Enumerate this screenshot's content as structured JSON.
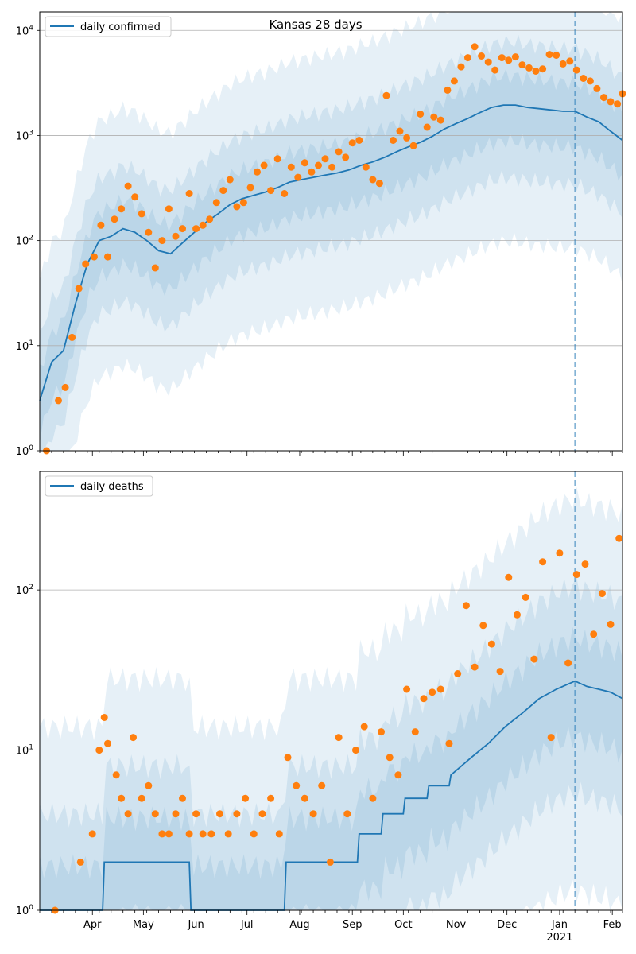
{
  "chart_data": [
    {
      "type": "line",
      "title": "Kansas 28 days",
      "legend": [
        "daily confirmed"
      ],
      "legend_position": "top-left",
      "y_scale": "log",
      "ylim": [
        1,
        15000
      ],
      "xlim": [
        "2020-03-01",
        "2021-02-07"
      ],
      "y_ticks": [
        {
          "value": 1,
          "label": "10^0"
        },
        {
          "value": 10,
          "label": "10^1"
        },
        {
          "value": 100,
          "label": "10^2"
        },
        {
          "value": 1000,
          "label": "10^3"
        },
        {
          "value": 10000,
          "label": "10^4"
        }
      ],
      "grid": "horizontal",
      "forecast_start": "2021-01-10",
      "series": [
        {
          "name": "daily confirmed",
          "kind": "line",
          "color": "#1f77b4",
          "x": [
            "2020-03-01",
            "2020-03-08",
            "2020-03-15",
            "2020-03-22",
            "2020-03-29",
            "2020-04-05",
            "2020-04-12",
            "2020-04-19",
            "2020-04-26",
            "2020-05-03",
            "2020-05-10",
            "2020-05-17",
            "2020-05-24",
            "2020-05-31",
            "2020-06-07",
            "2020-06-14",
            "2020-06-21",
            "2020-06-28",
            "2020-07-05",
            "2020-07-12",
            "2020-07-19",
            "2020-07-26",
            "2020-08-02",
            "2020-08-09",
            "2020-08-16",
            "2020-08-23",
            "2020-08-30",
            "2020-09-06",
            "2020-09-13",
            "2020-09-20",
            "2020-09-27",
            "2020-10-04",
            "2020-10-11",
            "2020-10-18",
            "2020-10-25",
            "2020-11-01",
            "2020-11-08",
            "2020-11-15",
            "2020-11-22",
            "2020-11-29",
            "2020-12-06",
            "2020-12-13",
            "2020-12-20",
            "2020-12-27",
            "2021-01-03",
            "2021-01-10",
            "2021-01-17",
            "2021-01-24",
            "2021-01-31",
            "2021-02-07"
          ],
          "y": [
            3,
            7,
            9,
            25,
            60,
            100,
            110,
            130,
            120,
            100,
            80,
            75,
            95,
            120,
            150,
            180,
            220,
            250,
            270,
            290,
            320,
            360,
            380,
            400,
            420,
            440,
            470,
            520,
            560,
            620,
            700,
            780,
            860,
            980,
            1150,
            1300,
            1450,
            1650,
            1850,
            1950,
            1950,
            1850,
            1800,
            1750,
            1700,
            1700,
            1500,
            1350,
            1100,
            900
          ]
        },
        {
          "name": "",
          "kind": "points",
          "color": "#ff7f0e",
          "x": [
            "2020-03-05",
            "2020-03-12",
            "2020-03-16",
            "2020-03-20",
            "2020-03-24",
            "2020-03-28",
            "2020-04-02",
            "2020-04-06",
            "2020-04-10",
            "2020-04-14",
            "2020-04-18",
            "2020-04-22",
            "2020-04-26",
            "2020-04-30",
            "2020-05-04",
            "2020-05-08",
            "2020-05-12",
            "2020-05-16",
            "2020-05-20",
            "2020-05-24",
            "2020-05-28",
            "2020-06-01",
            "2020-06-05",
            "2020-06-09",
            "2020-06-13",
            "2020-06-17",
            "2020-06-21",
            "2020-06-25",
            "2020-06-29",
            "2020-07-03",
            "2020-07-07",
            "2020-07-11",
            "2020-07-15",
            "2020-07-19",
            "2020-07-23",
            "2020-07-27",
            "2020-07-31",
            "2020-08-04",
            "2020-08-08",
            "2020-08-12",
            "2020-08-16",
            "2020-08-20",
            "2020-08-24",
            "2020-08-28",
            "2020-09-01",
            "2020-09-05",
            "2020-09-09",
            "2020-09-13",
            "2020-09-17",
            "2020-09-21",
            "2020-09-25",
            "2020-09-29",
            "2020-10-03",
            "2020-10-07",
            "2020-10-11",
            "2020-10-15",
            "2020-10-19",
            "2020-10-23",
            "2020-10-27",
            "2020-10-31",
            "2020-11-04",
            "2020-11-08",
            "2020-11-12",
            "2020-11-16",
            "2020-11-20",
            "2020-11-24",
            "2020-11-28",
            "2020-12-02",
            "2020-12-06",
            "2020-12-10",
            "2020-12-14",
            "2020-12-18",
            "2020-12-22",
            "2020-12-26",
            "2020-12-30",
            "2021-01-03",
            "2021-01-07",
            "2021-01-11",
            "2021-01-15",
            "2021-01-19",
            "2021-01-23",
            "2021-01-27",
            "2021-01-31",
            "2021-02-04",
            "2021-02-07"
          ],
          "y": [
            1,
            3,
            4,
            12,
            35,
            60,
            70,
            140,
            70,
            160,
            200,
            330,
            260,
            180,
            120,
            55,
            100,
            200,
            110,
            130,
            280,
            130,
            140,
            160,
            230,
            300,
            380,
            210,
            230,
            320,
            450,
            520,
            300,
            600,
            280,
            500,
            400,
            550,
            450,
            520,
            600,
            500,
            700,
            620,
            850,
            900,
            500,
            380,
            350,
            2400,
            900,
            1100,
            950,
            800,
            1600,
            1200,
            1500,
            1400,
            2700,
            3300,
            4500,
            5500,
            7000,
            5700,
            5000,
            4200,
            5500,
            5200,
            5600,
            4700,
            4400,
            4100,
            4300,
            5900,
            5800,
            4800,
            5100,
            4200,
            3500,
            3300,
            2800,
            2300,
            2100,
            2000,
            2500
          ]
        }
      ]
    },
    {
      "type": "line",
      "title": "",
      "legend": [
        "daily deaths"
      ],
      "legend_position": "top-left",
      "y_scale": "log",
      "ylim": [
        1,
        550
      ],
      "xlim": [
        "2020-03-01",
        "2021-02-07"
      ],
      "x_ticks": [
        "Apr",
        "May",
        "Jun",
        "Jul",
        "Aug",
        "Sep",
        "Oct",
        "Nov",
        "Dec",
        "Jan",
        "Feb"
      ],
      "x_tick_year": "2021",
      "y_ticks": [
        {
          "value": 10,
          "label": "10^1"
        },
        {
          "value": 100,
          "label": "10^2"
        },
        {
          "value": 1,
          "label": "10^0"
        }
      ],
      "grid": "horizontal",
      "forecast_start": "2021-01-10",
      "series": [
        {
          "name": "daily deaths",
          "kind": "line",
          "color": "#1f77b4",
          "x": [
            "2020-03-01",
            "2020-04-07",
            "2020-04-08",
            "2020-05-28",
            "2020-05-29",
            "2020-07-23",
            "2020-07-24",
            "2020-07-28",
            "2020-07-29",
            "2020-08-16",
            "2020-08-17",
            "2020-09-04",
            "2020-09-05",
            "2020-09-18",
            "2020-09-19",
            "2020-10-01",
            "2020-10-02",
            "2020-10-15",
            "2020-10-16",
            "2020-10-28",
            "2020-10-29",
            "2020-11-10",
            "2020-11-20",
            "2020-11-30",
            "2020-12-10",
            "2020-12-20",
            "2020-12-30",
            "2021-01-10",
            "2021-01-17",
            "2021-01-24",
            "2021-01-31",
            "2021-02-07"
          ],
          "y": [
            1,
            1,
            2,
            2,
            1,
            1,
            2,
            2,
            2,
            2,
            2,
            2,
            3,
            3,
            4,
            4,
            5,
            5,
            6,
            6,
            7,
            9,
            11,
            14,
            17,
            21,
            24,
            27,
            25,
            24,
            23,
            21
          ]
        },
        {
          "name": "",
          "kind": "points",
          "color": "#ff7f0e",
          "x": [
            "2020-03-10",
            "2020-03-25",
            "2020-04-01",
            "2020-04-05",
            "2020-04-08",
            "2020-04-10",
            "2020-04-15",
            "2020-04-18",
            "2020-04-22",
            "2020-04-25",
            "2020-04-30",
            "2020-05-04",
            "2020-05-08",
            "2020-05-12",
            "2020-05-16",
            "2020-05-20",
            "2020-05-24",
            "2020-05-28",
            "2020-06-01",
            "2020-06-05",
            "2020-06-10",
            "2020-06-15",
            "2020-06-20",
            "2020-06-25",
            "2020-06-30",
            "2020-07-05",
            "2020-07-10",
            "2020-07-15",
            "2020-07-20",
            "2020-07-25",
            "2020-07-30",
            "2020-08-04",
            "2020-08-09",
            "2020-08-14",
            "2020-08-19",
            "2020-08-24",
            "2020-08-29",
            "2020-09-03",
            "2020-09-08",
            "2020-09-13",
            "2020-09-18",
            "2020-09-23",
            "2020-09-28",
            "2020-10-03",
            "2020-10-08",
            "2020-10-13",
            "2020-10-18",
            "2020-10-23",
            "2020-10-28",
            "2020-11-02",
            "2020-11-07",
            "2020-11-12",
            "2020-11-17",
            "2020-11-22",
            "2020-11-27",
            "2020-12-02",
            "2020-12-07",
            "2020-12-12",
            "2020-12-17",
            "2020-12-22",
            "2020-12-27",
            "2021-01-01",
            "2021-01-06",
            "2021-01-11",
            "2021-01-16",
            "2021-01-21",
            "2021-01-26",
            "2021-01-31",
            "2021-02-05"
          ],
          "y": [
            1,
            2,
            3,
            10,
            16,
            11,
            7,
            5,
            4,
            12,
            5,
            6,
            4,
            3,
            3,
            4,
            5,
            3,
            4,
            3,
            3,
            4,
            3,
            4,
            5,
            3,
            4,
            5,
            3,
            9,
            6,
            5,
            4,
            6,
            2,
            12,
            4,
            10,
            14,
            5,
            13,
            9,
            7,
            24,
            13,
            21,
            23,
            24,
            11,
            30,
            80,
            33,
            60,
            46,
            31,
            120,
            70,
            90,
            37,
            150,
            12,
            170,
            35,
            125,
            145,
            53,
            95,
            61,
            210
          ]
        }
      ]
    }
  ]
}
